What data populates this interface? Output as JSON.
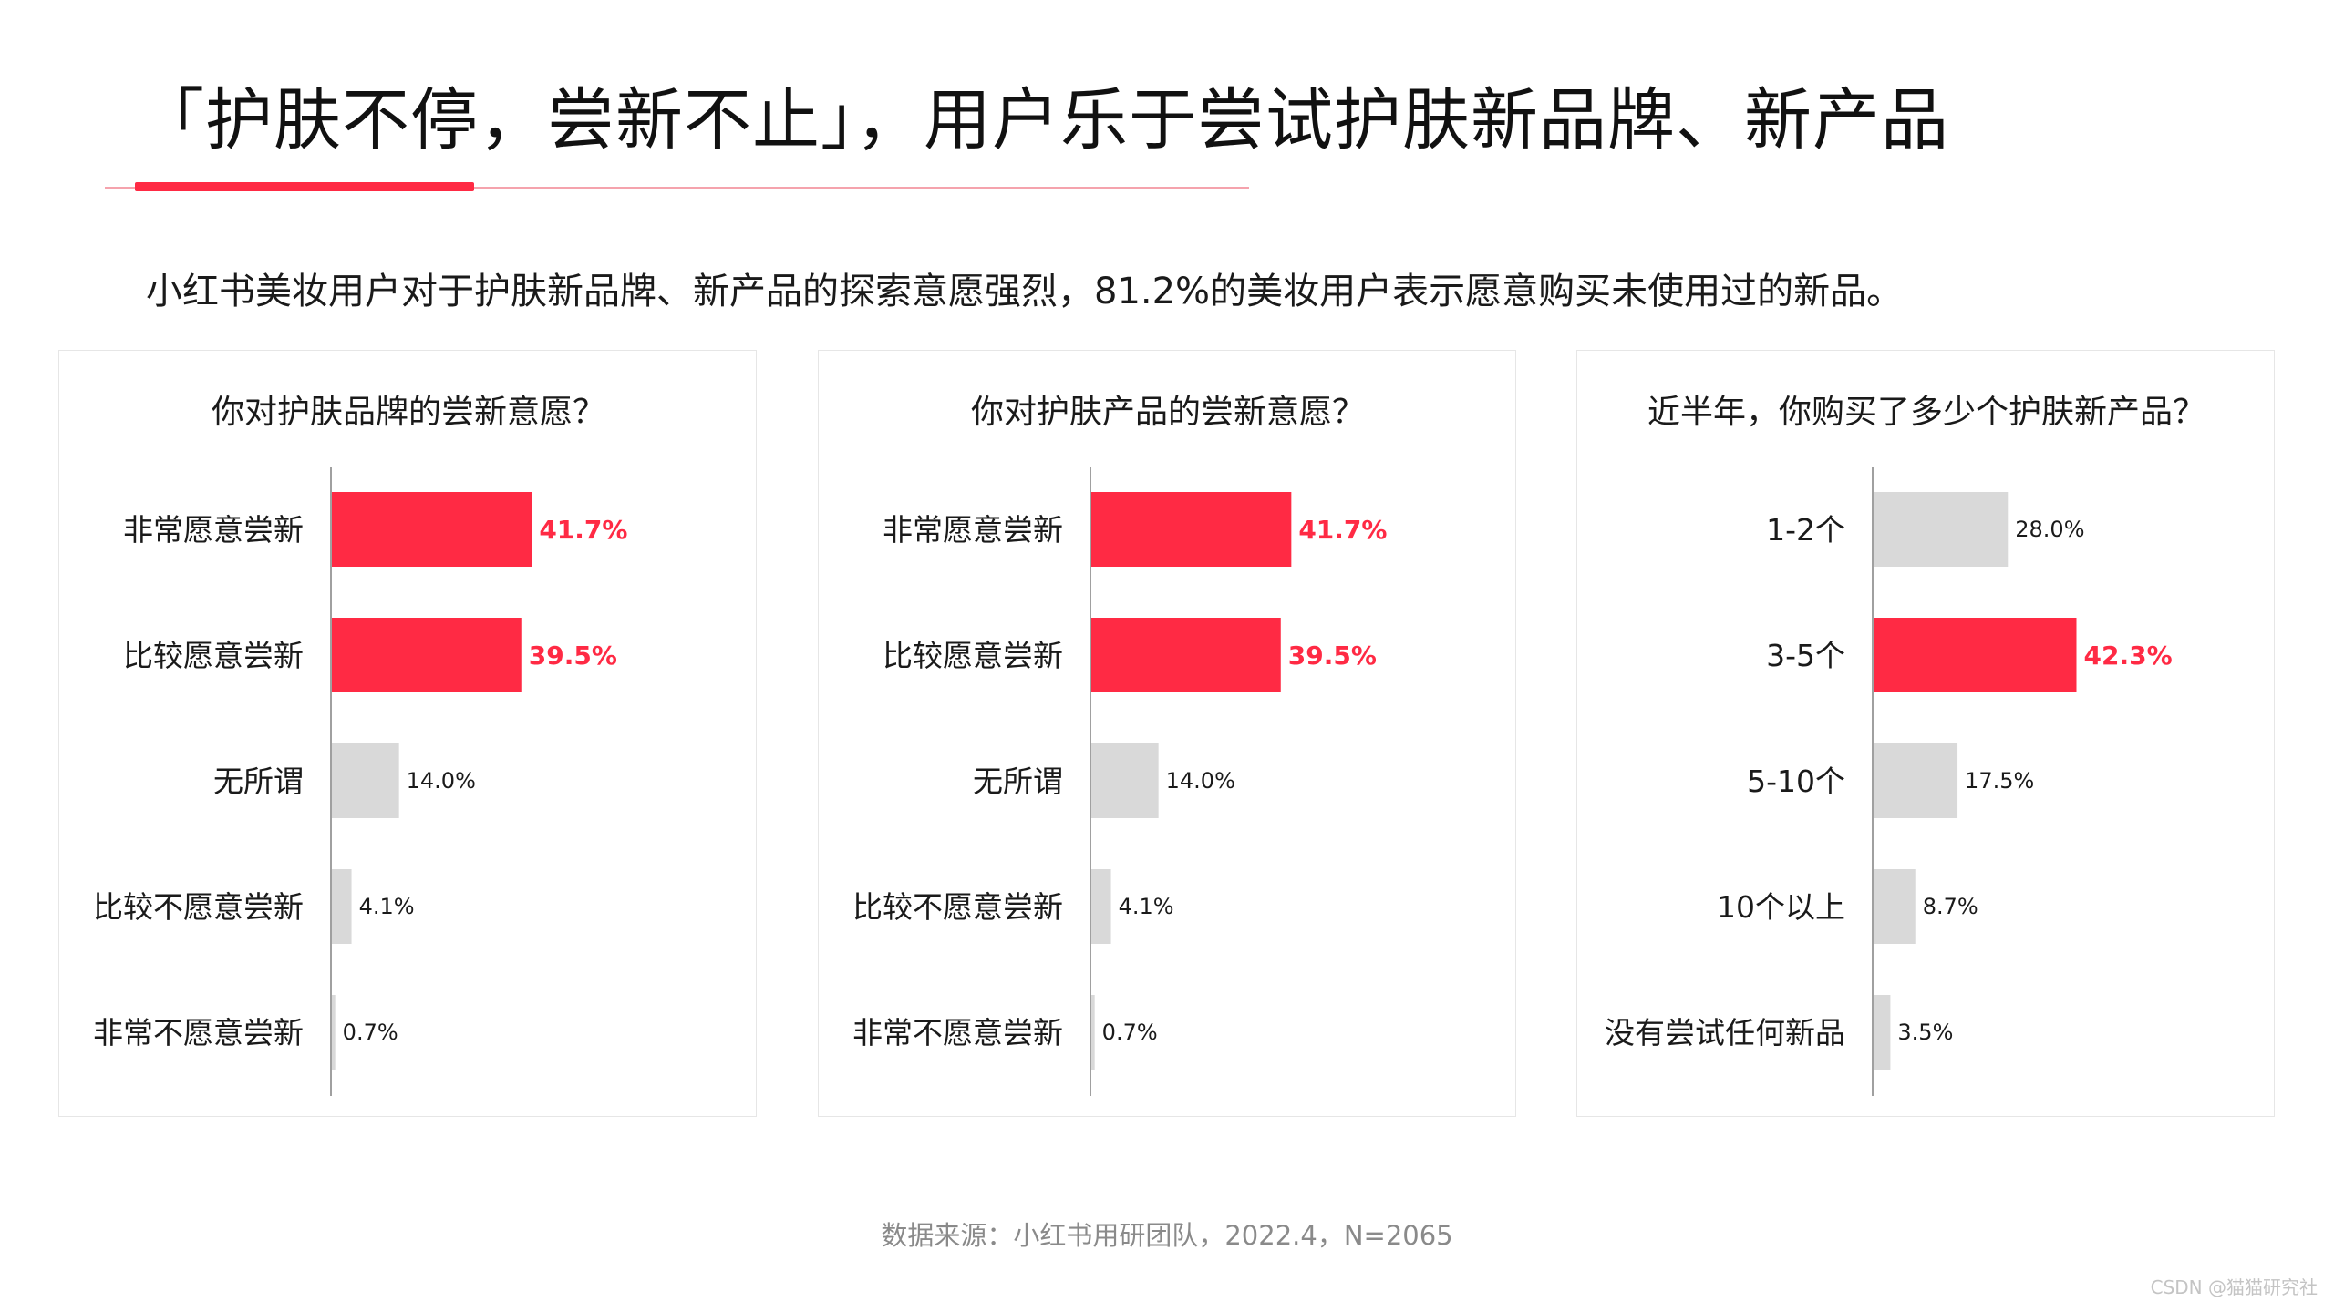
{
  "header": {
    "title": "「护肤不停，尝新不止」，用户乐于尝试护肤新品牌、新产品",
    "subtitle": "小红书美妆用户对于护肤新品牌、新产品的探索意愿强烈，81.2%的美妆用户表示愿意购买未使用过的新品。"
  },
  "colors": {
    "accent": "#ff2a44",
    "neutral_bar": "#d9d9d9",
    "axis": "#a0a0a0"
  },
  "chart_data": [
    {
      "type": "bar",
      "orientation": "horizontal",
      "title": "你对护肤品牌的尝新意愿？",
      "categories": [
        "非常愿意尝新",
        "比较愿意尝新",
        "无所谓",
        "比较不愿意尝新",
        "非常不愿意尝新"
      ],
      "values": [
        41.7,
        39.5,
        14.0,
        4.1,
        0.7
      ],
      "labels": [
        "41.7%",
        "39.5%",
        "14.0%",
        "4.1%",
        "0.7%"
      ],
      "highlight": [
        true,
        true,
        false,
        false,
        false
      ],
      "xlim": [
        0,
        50
      ]
    },
    {
      "type": "bar",
      "orientation": "horizontal",
      "title": "你对护肤产品的尝新意愿？",
      "categories": [
        "非常愿意尝新",
        "比较愿意尝新",
        "无所谓",
        "比较不愿意尝新",
        "非常不愿意尝新"
      ],
      "values": [
        41.7,
        39.5,
        14.0,
        4.1,
        0.7
      ],
      "labels": [
        "41.7%",
        "39.5%",
        "14.0%",
        "4.1%",
        "0.7%"
      ],
      "highlight": [
        true,
        true,
        false,
        false,
        false
      ],
      "xlim": [
        0,
        50
      ]
    },
    {
      "type": "bar",
      "orientation": "horizontal",
      "title": "近半年，你购买了多少个护肤新产品？",
      "categories": [
        "1-2个",
        "3-5个",
        "5-10个",
        "10个以上",
        "没有尝试任何新品"
      ],
      "values": [
        28.0,
        42.3,
        17.5,
        8.7,
        3.5
      ],
      "labels": [
        "28.0%",
        "42.3%",
        "17.5%",
        "8.7%",
        "3.5%"
      ],
      "highlight": [
        false,
        true,
        false,
        false,
        false
      ],
      "xlim": [
        0,
        50
      ]
    }
  ],
  "footer": {
    "source": "数据来源：小红书用研团队，2022.4，N=2065",
    "watermark": "CSDN @猫猫研究社"
  }
}
